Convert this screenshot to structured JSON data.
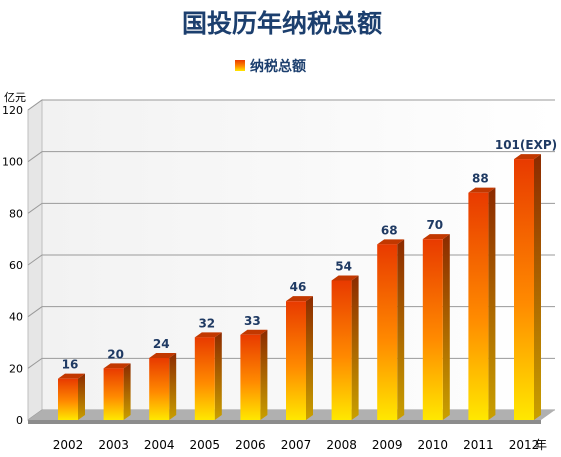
{
  "chart_data": {
    "type": "bar",
    "title": "国投历年纳税总额",
    "ylabel": "亿元",
    "xlabel": "年",
    "categories": [
      "2002",
      "2003",
      "2004",
      "2005",
      "2006",
      "2007",
      "2008",
      "2009",
      "2010",
      "2011",
      "2012"
    ],
    "series": [
      {
        "name": "纳税总额",
        "values": [
          16,
          20,
          24,
          32,
          33,
          46,
          54,
          68,
          70,
          88,
          101
        ]
      }
    ],
    "data_labels": [
      "16",
      "20",
      "24",
      "32",
      "33",
      "46",
      "54",
      "68",
      "70",
      "88",
      "101(EXP)"
    ],
    "y_ticks": [
      "0",
      "20",
      "40",
      "60",
      "80",
      "100",
      "120"
    ],
    "ylim": [
      0,
      120
    ],
    "grid": true,
    "legend_position": "top",
    "colors": {
      "bar_top": "#e83a00",
      "bar_bottom": "#ffe000",
      "side": "#a33000",
      "floor": "#a0a0a0",
      "title": "#1c3f6e"
    }
  }
}
